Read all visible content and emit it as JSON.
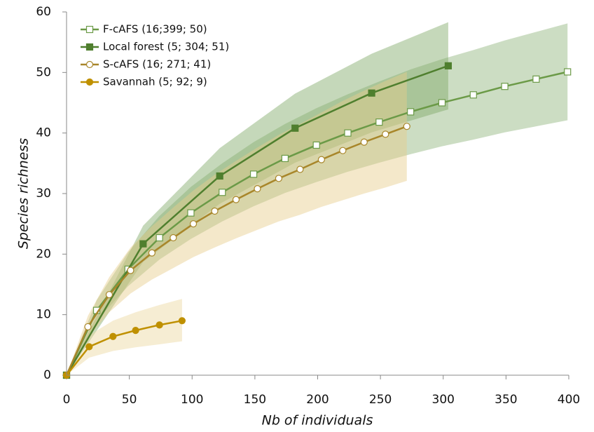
{
  "chart_data": {
    "type": "line",
    "x_label": "Nb of individuals",
    "y_label": "Species richness",
    "xlim": [
      0,
      400
    ],
    "xticks": [
      0,
      50,
      100,
      150,
      200,
      250,
      300,
      350,
      400
    ],
    "ylim": [
      0,
      60
    ],
    "yticks": [
      0,
      10,
      20,
      30,
      40,
      50,
      60
    ],
    "legend": "top-left",
    "series": [
      {
        "name": "F-cAFS (16;399; 50)",
        "color": "#6b9a47",
        "band_color": "#8fb47a",
        "marker": "square-open",
        "x": [
          0,
          24,
          49,
          74,
          99,
          124,
          149,
          174,
          199,
          224,
          249,
          274,
          299,
          324,
          349,
          374,
          399
        ],
        "values": [
          0,
          10.7,
          17.5,
          22.7,
          26.8,
          30.2,
          33.2,
          35.8,
          38.0,
          40.0,
          41.8,
          43.5,
          45.0,
          46.3,
          47.7,
          48.9,
          50.1
        ],
        "lower": [
          0,
          9.0,
          14.7,
          19.1,
          22.5,
          25.4,
          27.9,
          30.1,
          31.9,
          33.6,
          35.1,
          36.5,
          37.8,
          38.9,
          40.1,
          41.1,
          42.1
        ],
        "upper": [
          0,
          12.4,
          20.3,
          26.3,
          31.1,
          35.0,
          38.5,
          41.5,
          44.1,
          46.4,
          48.5,
          50.5,
          52.2,
          53.7,
          55.3,
          56.7,
          58.1
        ]
      },
      {
        "name": "Local forest (5; 304; 51)",
        "color": "#4f7f2e",
        "band_color": "#7ea865",
        "marker": "square",
        "x": [
          0,
          61,
          122,
          182,
          243,
          304
        ],
        "values": [
          0,
          21.7,
          32.9,
          40.8,
          46.6,
          51.1
        ],
        "lower": [
          0,
          18.7,
          28.3,
          35.1,
          40.1,
          43.9
        ],
        "upper": [
          0,
          24.7,
          37.5,
          46.5,
          53.1,
          58.3
        ]
      },
      {
        "name": "S-cAFS (16; 271; 41)",
        "color": "#a8862a",
        "band_color": "#e6cc8a",
        "marker": "circle-open",
        "x": [
          0,
          17,
          34,
          51,
          68,
          85,
          101,
          118,
          135,
          152,
          169,
          186,
          203,
          220,
          237,
          254,
          271
        ],
        "values": [
          0,
          8.0,
          13.3,
          17.3,
          20.2,
          22.7,
          25.0,
          27.1,
          29.0,
          30.8,
          32.5,
          34.0,
          35.6,
          37.1,
          38.5,
          39.8,
          41.1
        ],
        "lower": [
          0,
          6.2,
          10.4,
          13.5,
          15.8,
          17.7,
          19.5,
          21.1,
          22.6,
          24.0,
          25.4,
          26.5,
          27.8,
          28.9,
          30.0,
          31.0,
          32.1
        ],
        "upper": [
          0,
          9.8,
          16.2,
          21.1,
          24.6,
          27.7,
          30.5,
          33.1,
          35.4,
          37.6,
          39.7,
          41.5,
          43.4,
          45.3,
          47.0,
          48.6,
          50.1
        ]
      },
      {
        "name": "Savannah (5; 92; 9)",
        "color": "#bf9000",
        "band_color": "#ecd69e",
        "marker": "circle",
        "x": [
          0,
          18,
          37,
          55,
          74,
          92
        ],
        "values": [
          0,
          4.7,
          6.4,
          7.4,
          8.3,
          9.0
        ],
        "lower": [
          0,
          2.9,
          4.0,
          4.6,
          5.1,
          5.6
        ],
        "upper": [
          0,
          6.6,
          9.0,
          10.4,
          11.6,
          12.6
        ]
      }
    ]
  }
}
